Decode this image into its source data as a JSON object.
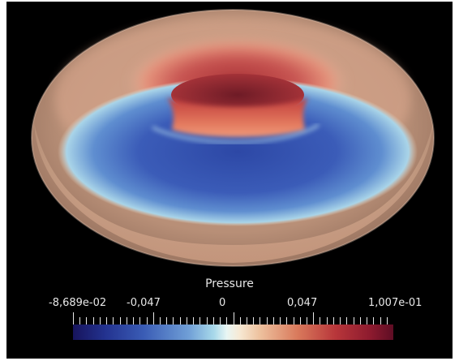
{
  "visualization": {
    "field": "Pressure",
    "scalar_bar": {
      "labels": [
        "-8,689e-02",
        "-0,047",
        "0",
        "0,047",
        "1,007e-01"
      ],
      "range": [
        -0.08689,
        0.1007
      ],
      "colormap": "diverging blue-white-red"
    },
    "background_color": "#000000"
  }
}
